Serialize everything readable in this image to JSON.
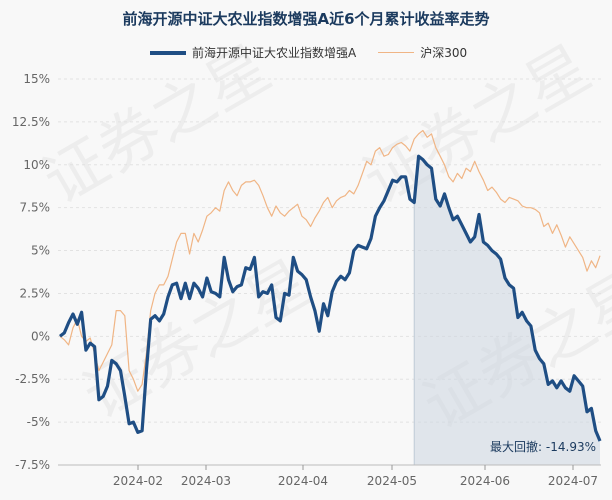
{
  "chart_data": {
    "type": "line",
    "title": "前海开源中证大农业指数增强A近6个月累计收益率走势",
    "ylim": [
      -7.5,
      15
    ],
    "yticks": [
      "15%",
      "12.5%",
      "10%",
      "7.5%",
      "5%",
      "2.5%",
      "0%",
      "-2.5%",
      "-5%",
      "-7.5%"
    ],
    "xticks": [
      "2024-02",
      "2024-03",
      "2024-04",
      "2024-05",
      "2024-06",
      "2024-07"
    ],
    "grid": true,
    "legend_position": "top",
    "annotation": "最大回撤: -14.93%",
    "watermark": "证券之星",
    "series": [
      {
        "name": "前海开源中证大农业指数增强A",
        "color": "#1f4e84",
        "values": [
          0.0,
          0.2,
          0.8,
          1.3,
          0.7,
          1.4,
          -0.8,
          -0.4,
          -0.6,
          -3.7,
          -3.5,
          -2.9,
          -1.4,
          -1.6,
          -2.0,
          -3.5,
          -5.1,
          -5.0,
          -5.6,
          -5.5,
          -2.0,
          1.0,
          1.2,
          0.9,
          1.3,
          2.3,
          3.0,
          3.1,
          2.2,
          3.1,
          2.2,
          3.1,
          2.8,
          2.3,
          3.4,
          2.6,
          2.5,
          2.3,
          4.6,
          3.3,
          2.6,
          2.9,
          3.0,
          4.0,
          3.9,
          4.6,
          2.3,
          2.6,
          2.5,
          3.0,
          1.1,
          0.9,
          2.5,
          2.4,
          4.6,
          3.8,
          3.6,
          3.3,
          2.3,
          1.5,
          0.3,
          1.9,
          1.2,
          2.6,
          3.2,
          3.5,
          3.3,
          3.7,
          5.0,
          5.3,
          5.2,
          5.1,
          5.7,
          7.0,
          7.5,
          7.9,
          8.5,
          9.1,
          9.0,
          9.3,
          9.3,
          8.0,
          7.8,
          10.5,
          10.3,
          10.0,
          9.8,
          8.0,
          7.6,
          8.3,
          7.5,
          6.8,
          7.0,
          6.5,
          6.0,
          5.5,
          5.8,
          7.1,
          5.5,
          5.3,
          5.0,
          4.8,
          4.5,
          3.4,
          3.0,
          2.8,
          1.1,
          1.4,
          0.9,
          0.6,
          -0.8,
          -1.3,
          -1.6,
          -2.8,
          -2.6,
          -3.0,
          -2.6,
          -3.0,
          -3.2,
          -2.3,
          -2.6,
          -2.9,
          -4.4,
          -4.2,
          -5.5,
          -6.1
        ]
      },
      {
        "name": "沪深300",
        "color": "#f0b585",
        "values": [
          0.0,
          -0.2,
          -0.5,
          0.5,
          1.0,
          0.0,
          -0.3,
          -0.1,
          -1.0,
          -2.0,
          -1.5,
          -1.0,
          -0.5,
          1.5,
          1.5,
          1.2,
          -2.0,
          -2.5,
          -3.2,
          -2.8,
          -1.0,
          1.5,
          2.5,
          3.0,
          3.0,
          3.5,
          4.5,
          5.5,
          6.0,
          6.0,
          4.8,
          6.0,
          5.5,
          6.2,
          7.0,
          7.2,
          7.5,
          7.3,
          8.5,
          9.0,
          8.5,
          8.2,
          8.8,
          9.0,
          9.0,
          9.1,
          8.8,
          8.2,
          7.5,
          7.0,
          7.6,
          7.2,
          7.0,
          7.3,
          7.5,
          7.7,
          7.0,
          6.8,
          6.4,
          6.9,
          7.3,
          7.8,
          8.1,
          7.5,
          7.9,
          8.1,
          8.2,
          8.5,
          8.3,
          8.8,
          9.5,
          10.2,
          10.0,
          10.8,
          11.0,
          10.5,
          10.6,
          11.0,
          11.2,
          11.3,
          11.1,
          10.8,
          11.5,
          11.8,
          12.0,
          11.6,
          11.8,
          11.0,
          10.5,
          10.0,
          9.3,
          9.0,
          9.5,
          9.2,
          9.8,
          9.6,
          10.2,
          9.6,
          9.1,
          8.5,
          8.7,
          8.4,
          8.0,
          7.8,
          8.1,
          8.0,
          7.9,
          7.6,
          7.5,
          7.5,
          7.4,
          7.2,
          6.4,
          6.6,
          6.0,
          6.5,
          5.9,
          5.2,
          5.8,
          5.4,
          5.0,
          4.6,
          3.8,
          4.4,
          4.0,
          4.7
        ]
      }
    ],
    "drawdown_start_index": 82
  }
}
